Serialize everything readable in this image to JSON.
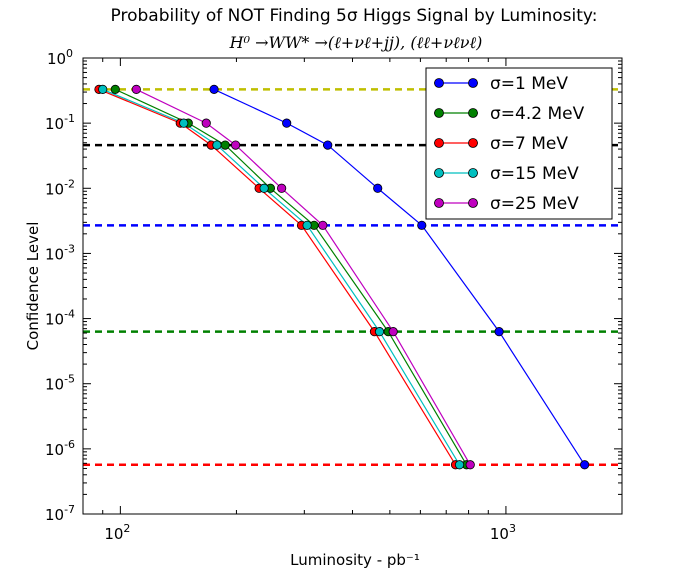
{
  "chart_data": {
    "type": "line",
    "title": "Probability of NOT Finding 5σ Higgs Signal by Luminosity:",
    "subtitle": "H⁰ →WW* →(ℓ+νℓ+jj), (ℓℓ+νℓνℓ)",
    "xlabel": "Luminosity - pb⁻¹",
    "ylabel": "Confidence Level",
    "xscale": "log",
    "yscale": "log",
    "xlim": [
      80,
      2000
    ],
    "ylim": [
      1e-07,
      1
    ],
    "grid": false,
    "legend_position": "top-right",
    "x_ticks": [
      {
        "value": 100,
        "base": "10",
        "exp": "2"
      },
      {
        "value": 1000,
        "base": "10",
        "exp": "3"
      }
    ],
    "y_ticks": [
      {
        "value": 1,
        "base": "10",
        "exp": "0"
      },
      {
        "value": 0.1,
        "base": "10",
        "exp": "-1"
      },
      {
        "value": 0.01,
        "base": "10",
        "exp": "-2"
      },
      {
        "value": 0.001,
        "base": "10",
        "exp": "-3"
      },
      {
        "value": 0.0001,
        "base": "10",
        "exp": "-4"
      },
      {
        "value": 1e-05,
        "base": "10",
        "exp": "-5"
      },
      {
        "value": 1e-06,
        "base": "10",
        "exp": "-6"
      },
      {
        "value": 1e-07,
        "base": "10",
        "exp": "-7"
      }
    ],
    "hlines": [
      {
        "y": 0.33,
        "color": "#bfbf00"
      },
      {
        "y": 0.046,
        "color": "#000000"
      },
      {
        "y": 0.0027,
        "color": "#0000ff"
      },
      {
        "y": 6.3e-05,
        "color": "#008000"
      },
      {
        "y": 5.7e-07,
        "color": "#ff0000"
      }
    ],
    "series": [
      {
        "name": "σ=1 MeV",
        "color": "#0000ff",
        "x": [
          175,
          270,
          345,
          465,
          605,
          960,
          1600
        ],
        "y": [
          0.33,
          0.1,
          0.046,
          0.01,
          0.0027,
          6.3e-05,
          5.7e-07
        ]
      },
      {
        "name": "σ=4.2 MeV",
        "color": "#008000",
        "x": [
          97,
          150,
          187,
          245,
          318,
          495,
          790
        ],
        "y": [
          0.33,
          0.1,
          0.046,
          0.01,
          0.0027,
          6.3e-05,
          5.7e-07
        ]
      },
      {
        "name": "σ=7 MeV",
        "color": "#ff0000",
        "x": [
          88,
          143,
          172,
          229,
          295,
          456,
          740
        ],
        "y": [
          0.33,
          0.1,
          0.046,
          0.01,
          0.0027,
          6.3e-05,
          5.7e-07
        ]
      },
      {
        "name": "σ=15 MeV",
        "color": "#00bfbf",
        "x": [
          90,
          146,
          178,
          236,
          305,
          470,
          758
        ],
        "y": [
          0.33,
          0.1,
          0.046,
          0.01,
          0.0027,
          6.3e-05,
          5.7e-07
        ]
      },
      {
        "name": "σ=25 MeV",
        "color": "#bf00bf",
        "x": [
          110,
          167,
          199,
          262,
          335,
          510,
          808
        ],
        "y": [
          0.33,
          0.1,
          0.046,
          0.01,
          0.0027,
          6.3e-05,
          5.7e-07
        ]
      }
    ]
  }
}
